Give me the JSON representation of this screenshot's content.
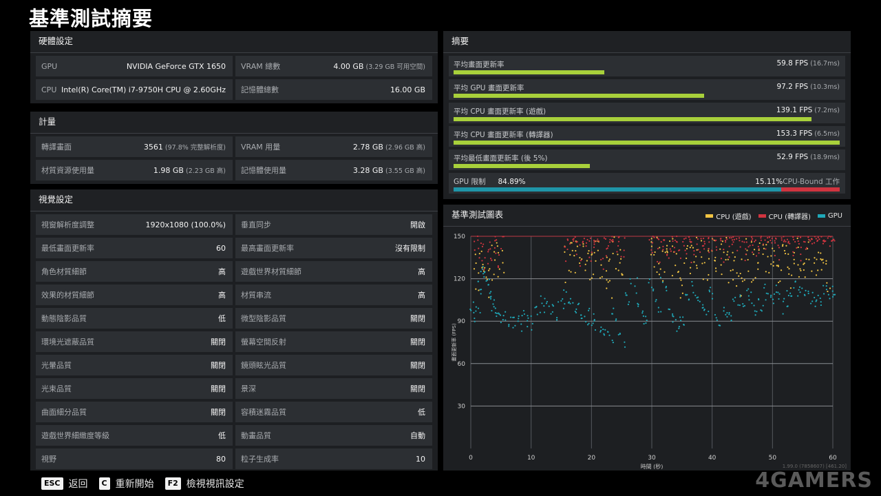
{
  "page_title": "基準測試摘要",
  "hardware": {
    "title": "硬體設定",
    "rows": [
      {
        "k": "GPU",
        "v": "NVIDIA GeForce GTX 1650",
        "sub": ""
      },
      {
        "k": "VRAM 總數",
        "v": "4.00 GB",
        "sub": " (3.29 GB 可用空間)"
      },
      {
        "k": "CPU",
        "v": "Intel(R) Core(TM) i7-9750H CPU @ 2.60GHz",
        "sub": ""
      },
      {
        "k": "記憶體總數",
        "v": "16.00 GB",
        "sub": ""
      }
    ]
  },
  "metrics": {
    "title": "計量",
    "rows": [
      {
        "k": "轉譯畫面",
        "v": "3561",
        "sub": " (97.8% 完整解析度)"
      },
      {
        "k": "VRAM 用量",
        "v": "2.78 GB",
        "sub": " (2.96 GB 高)"
      },
      {
        "k": "材質資源使用量",
        "v": "1.98 GB",
        "sub": " (2.23 GB 高)"
      },
      {
        "k": "記憶體使用量",
        "v": "3.28 GB",
        "sub": " (3.55 GB 高)"
      }
    ]
  },
  "visual": {
    "title": "視覺設定",
    "rows": [
      {
        "k": "視窗解析度調整",
        "v": "1920x1080 (100.0%)"
      },
      {
        "k": "垂直同步",
        "v": "開啟"
      },
      {
        "k": "最低畫面更新率",
        "v": "60"
      },
      {
        "k": "最高畫面更新率",
        "v": "沒有限制"
      },
      {
        "k": "角色材質細節",
        "v": "高"
      },
      {
        "k": "遊戲世界材質細節",
        "v": "高"
      },
      {
        "k": "效果的材質細節",
        "v": "高"
      },
      {
        "k": "材質串流",
        "v": "高"
      },
      {
        "k": "動態陰影品質",
        "v": "低"
      },
      {
        "k": "微型陰影品質",
        "v": "關閉"
      },
      {
        "k": "環境光遮蔽品質",
        "v": "關閉"
      },
      {
        "k": "螢幕空間反射",
        "v": "關閉"
      },
      {
        "k": "光暈品質",
        "v": "關閉"
      },
      {
        "k": "鏡頭眩光品質",
        "v": "關閉"
      },
      {
        "k": "光束品質",
        "v": "關閉"
      },
      {
        "k": "景深",
        "v": "關閉"
      },
      {
        "k": "曲面細分品質",
        "v": "關閉"
      },
      {
        "k": "容積迷霧品質",
        "v": "低"
      },
      {
        "k": "遊戲世界細緻度等級",
        "v": "低"
      },
      {
        "k": "動畫品質",
        "v": "自動"
      },
      {
        "k": "視野",
        "v": "80"
      },
      {
        "k": "粒子生成率",
        "v": "10"
      }
    ]
  },
  "summary": {
    "title": "摘要",
    "rows": [
      {
        "k": "平均畫面更新率",
        "v": "59.8 FPS",
        "sub": " (16.7ms)",
        "fill": 0.39
      },
      {
        "k": "平均 GPU 畫面更新率",
        "v": "97.2 FPS",
        "sub": " (10.3ms)",
        "fill": 0.648
      },
      {
        "k": "平均 CPU 畫面更新率 (遊戲)",
        "v": "139.1 FPS",
        "sub": " (7.2ms)",
        "fill": 0.927
      },
      {
        "k": "平均 CPU 畫面更新率 (轉譯器)",
        "v": "153.3 FPS",
        "sub": " (6.5ms)",
        "fill": 1.0
      },
      {
        "k": "平均最低畫面更新率 (後 5%)",
        "v": "52.9 FPS",
        "sub": " (18.9ms)",
        "fill": 0.353
      }
    ],
    "bound": {
      "k": "GPU 限制",
      "gpu_pct": "84.89%",
      "cpu_pct": "15.11%",
      "cpu_label": "CPU-Bound 工作",
      "gpu_fraction": 0.8489
    },
    "bar_color": "#a8d03b",
    "gpu_color": "#1f95a8",
    "cpu_color": "#d0343f"
  },
  "chart": {
    "title": "基準測試圖表",
    "legend": [
      {
        "name": "CPU (遊戲)",
        "color": "#f2c443"
      },
      {
        "name": "CPU (轉譯器)",
        "color": "#d0343f"
      },
      {
        "name": "GPU",
        "color": "#1fa8b8"
      }
    ],
    "footer": "1.99.0 (7858607) [461.20]"
  },
  "chart_data": {
    "type": "scatter",
    "title": "基準測試圖表",
    "xlabel": "時間 (秒)",
    "ylabel": "畫面更新率 (FPS)",
    "xlim": [
      0,
      60
    ],
    "ylim": [
      0,
      150
    ],
    "xticks": [
      0,
      10,
      20,
      30,
      40,
      50,
      60
    ],
    "yticks": [
      30,
      60,
      90,
      120,
      150
    ],
    "grid": true,
    "legend_position": "top-right",
    "series": [
      {
        "name": "GPU",
        "color": "#1fa8b8",
        "x": [
          0.5,
          1,
          1.5,
          2,
          2.5,
          3,
          3.5,
          4,
          5,
          6,
          7,
          8,
          9,
          10,
          11,
          12,
          13,
          14,
          15,
          16,
          17,
          18,
          19,
          20,
          21,
          22,
          23,
          24,
          25,
          26,
          27,
          28,
          29,
          30,
          31,
          32,
          33,
          34,
          35,
          36,
          37,
          38,
          39,
          40,
          41,
          42,
          43,
          44,
          45,
          46,
          47,
          48,
          49,
          50,
          51,
          52,
          53,
          54,
          55,
          56,
          57,
          58,
          59,
          60
        ],
        "y": [
          95,
          100,
          115,
          125,
          120,
          112,
          105,
          97,
          93,
          91,
          90,
          88,
          92,
          89,
          97,
          102,
          100,
          96,
          103,
          106,
          102,
          97,
          91,
          93,
          86,
          84,
          80,
          94,
          77,
          104,
          115,
          99,
          92,
          115,
          100,
          117,
          98,
          88,
          88,
          107,
          112,
          103,
          97,
          110,
          90,
          97,
          93,
          105,
          103,
          111,
          99,
          102,
          110,
          106,
          110,
          101,
          108,
          113,
          110,
          108,
          105,
          105,
          110,
          111
        ]
      },
      {
        "name": "CPU (遊戲)",
        "color": "#f2c443",
        "x": [
          1,
          2,
          3,
          4,
          5,
          16,
          17,
          18,
          19,
          20,
          21,
          22,
          23,
          24,
          25,
          30,
          31,
          32,
          33,
          34,
          35,
          36,
          37,
          38,
          39,
          40,
          41,
          42,
          43,
          44,
          45,
          46,
          47,
          48,
          49,
          50,
          51,
          52,
          53,
          54,
          55,
          56,
          57,
          58,
          59
        ],
        "y": [
          125,
          130,
          120,
          135,
          128,
          130,
          138,
          142,
          135,
          130,
          140,
          125,
          120,
          138,
          128,
          140,
          136,
          130,
          142,
          125,
          118,
          130,
          138,
          140,
          128,
          140,
          135,
          142,
          130,
          125,
          120,
          138,
          128,
          140,
          132,
          135,
          128,
          140,
          125,
          138,
          130,
          142,
          128,
          136,
          120
        ]
      },
      {
        "name": "CPU (轉譯器)",
        "color": "#d0343f",
        "x": [
          1,
          2,
          3,
          4,
          5,
          16,
          17,
          18,
          19,
          20,
          21,
          22,
          23,
          24,
          25,
          30,
          31,
          32,
          33,
          34,
          35,
          36,
          37,
          38,
          39,
          40,
          41,
          42,
          43,
          44,
          45,
          46,
          47,
          48,
          49,
          50,
          51,
          52,
          53,
          54,
          55,
          56,
          57,
          58,
          59,
          60
        ],
        "y": [
          148,
          135,
          140,
          145,
          138,
          145,
          150,
          140,
          148,
          142,
          146,
          138,
          144,
          150,
          140,
          150,
          145,
          148,
          140,
          150,
          146,
          150,
          142,
          148,
          150,
          146,
          150,
          144,
          148,
          150,
          142,
          150,
          146,
          150,
          148,
          150,
          144,
          150,
          148,
          150,
          146,
          150,
          148,
          150,
          146,
          150
        ]
      }
    ]
  },
  "bottom": [
    {
      "key": "ESC",
      "label": "返回"
    },
    {
      "key": "C",
      "label": "重新開始"
    },
    {
      "key": "F2",
      "label": "檢視視訊設定"
    }
  ],
  "watermark": "4GAMERS"
}
